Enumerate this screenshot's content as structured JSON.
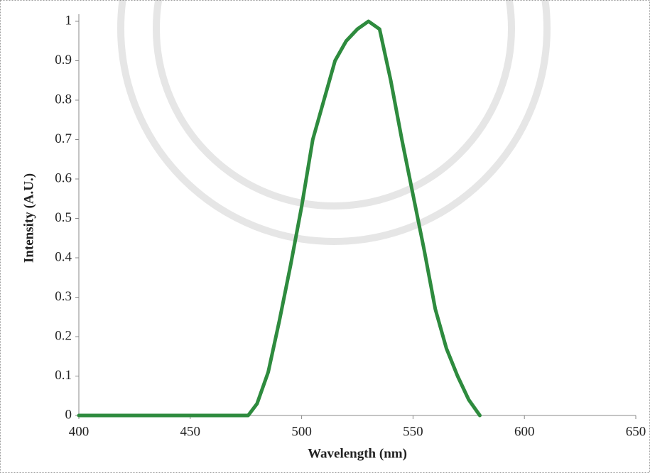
{
  "chart_data": {
    "type": "line",
    "x_label": "Wavelength (nm)",
    "y_label": "Intensity (A.U.)",
    "x": [
      400,
      476,
      480,
      485,
      490,
      495,
      500,
      505,
      510,
      515,
      520,
      525,
      530,
      535,
      540,
      545,
      550,
      555,
      560,
      565,
      570,
      575,
      580
    ],
    "series": [
      {
        "color": "#2e8b3e",
        "values": [
          0,
          0,
          0.03,
          0.11,
          0.24,
          0.38,
          0.53,
          0.7,
          0.8,
          0.9,
          0.95,
          0.98,
          1.0,
          0.98,
          0.85,
          0.7,
          0.56,
          0.42,
          0.27,
          0.17,
          0.1,
          0.04,
          0
        ]
      }
    ],
    "xlim": [
      400,
      650
    ],
    "xticks": [
      400,
      450,
      500,
      550,
      600,
      650
    ],
    "ylim": [
      0,
      1
    ],
    "yticks": [
      0,
      0.1,
      0.2,
      0.3,
      0.4,
      0.5,
      0.6,
      0.7,
      0.8,
      0.9,
      1
    ]
  }
}
